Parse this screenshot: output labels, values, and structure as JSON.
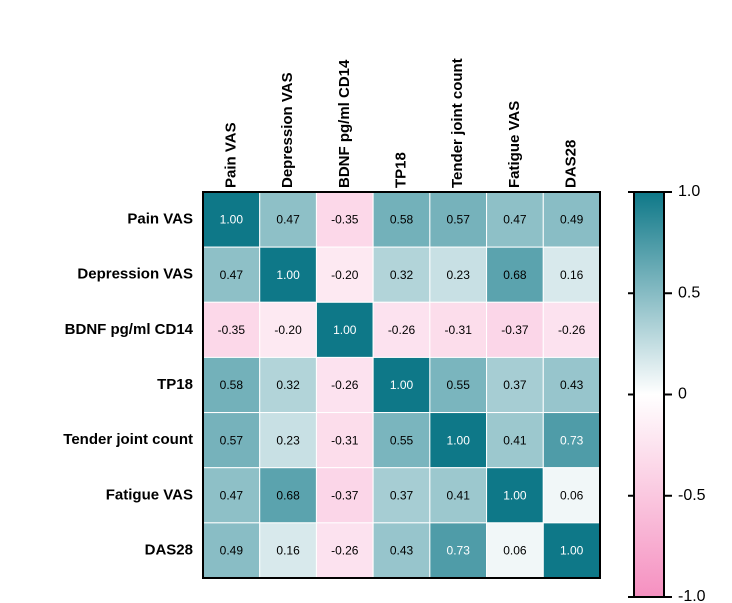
{
  "chart_data": {
    "type": "heatmap",
    "x_categories": [
      "Pain VAS",
      "Depression VAS",
      "BDNF pg/ml CD14",
      "TP18",
      "Tender joint count",
      "Fatigue VAS",
      "DAS28"
    ],
    "y_categories": [
      "Pain VAS",
      "Depression VAS",
      "BDNF pg/ml CD14",
      "TP18",
      "Tender joint count",
      "Fatigue VAS",
      "DAS28"
    ],
    "values": [
      [
        1,
        0.47,
        -0.35,
        0.58,
        0.57,
        0.47,
        0.49
      ],
      [
        0.47,
        1,
        -0.2,
        0.32,
        0.23,
        0.68,
        0.16
      ],
      [
        -0.35,
        -0.2,
        1,
        -0.26,
        -0.31,
        -0.37,
        -0.26
      ],
      [
        0.58,
        0.32,
        -0.26,
        1,
        0.55,
        0.37,
        0.43
      ],
      [
        0.57,
        0.23,
        -0.31,
        0.55,
        1,
        0.41,
        0.73
      ],
      [
        0.47,
        0.68,
        -0.37,
        0.37,
        0.41,
        1,
        0.06
      ],
      [
        0.49,
        0.16,
        -0.26,
        0.43,
        0.73,
        0.06,
        1
      ]
    ],
    "value_labels": [
      [
        "1.00",
        "0.47",
        "-0.35",
        "0.58",
        "0.57",
        "0.47",
        "0.49"
      ],
      [
        "0.47",
        "1.00",
        "-0.20",
        "0.32",
        "0.23",
        "0.68",
        "0.16"
      ],
      [
        "-0.35",
        "-0.20",
        "1.00",
        "-0.26",
        "-0.31",
        "-0.37",
        "-0.26"
      ],
      [
        "0.58",
        "0.32",
        "-0.26",
        "1.00",
        "0.55",
        "0.37",
        "0.43"
      ],
      [
        "0.57",
        "0.23",
        "-0.31",
        "0.55",
        "1.00",
        "0.41",
        "0.73"
      ],
      [
        "0.47",
        "0.68",
        "-0.37",
        "0.37",
        "0.41",
        "1.00",
        "0.06"
      ],
      [
        "0.49",
        "0.16",
        "-0.26",
        "0.43",
        "0.73",
        "0.06",
        "1.00"
      ]
    ],
    "colors": [
      "#f590c0",
      "#ffffff",
      "#0e7888"
    ],
    "zlim": [
      -1,
      1
    ],
    "zticks": [
      {
        "value": 1,
        "label": "1.0"
      },
      0.5,
      0,
      -0.5,
      {
        "value": -1,
        "label": "-1.0"
      }
    ]
  }
}
